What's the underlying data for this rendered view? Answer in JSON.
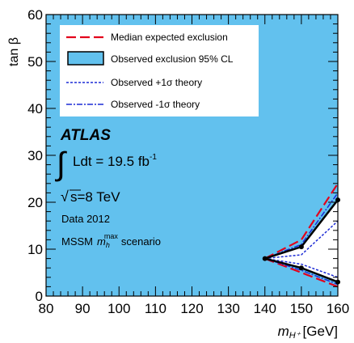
{
  "chart_data": {
    "type": "line",
    "xlabel": "m",
    "xlabel_sub": "H⁺",
    "xlabel_unit": "[GeV]",
    "ylabel": "tan β",
    "xlim": [
      80,
      160
    ],
    "ylim": [
      0,
      60
    ],
    "xticks": [
      "80",
      "90",
      "100",
      "110",
      "120",
      "130",
      "140",
      "150",
      "160"
    ],
    "yticks": [
      "0",
      "10",
      "20",
      "30",
      "40",
      "50",
      "60"
    ],
    "legend_position": "top-left",
    "series": [
      {
        "name": "Median expected exclusion",
        "style": "dashed",
        "color": "#e3001b",
        "upper": [
          {
            "x": 140,
            "y": 8
          },
          {
            "x": 150,
            "y": 12
          },
          {
            "x": 160,
            "y": 24
          }
        ],
        "lower": [
          {
            "x": 140,
            "y": 8
          },
          {
            "x": 150,
            "y": 5
          },
          {
            "x": 160,
            "y": 2
          }
        ]
      },
      {
        "name": "Observed exclusion 95% CL",
        "style": "filled",
        "color": "#62c1ee",
        "upper": [
          {
            "x": 140,
            "y": 8
          },
          {
            "x": 150,
            "y": 10.5
          },
          {
            "x": 160,
            "y": 20.5
          }
        ],
        "lower": [
          {
            "x": 140,
            "y": 8
          },
          {
            "x": 150,
            "y": 6
          },
          {
            "x": 160,
            "y": 3
          }
        ]
      },
      {
        "name": "Observed +1σ theory",
        "style": "dotted",
        "color": "#1c2bd6",
        "upper": [
          {
            "x": 140,
            "y": 8
          },
          {
            "x": 150,
            "y": 8.8
          },
          {
            "x": 160,
            "y": 16
          }
        ],
        "lower": [
          {
            "x": 140,
            "y": 8
          },
          {
            "x": 150,
            "y": 6.8
          },
          {
            "x": 160,
            "y": 4
          }
        ]
      },
      {
        "name": "Observed -1σ theory",
        "style": "dashdot",
        "color": "#1c2bd6",
        "upper": [
          {
            "x": 140,
            "y": 8
          },
          {
            "x": 150,
            "y": 11
          },
          {
            "x": 160,
            "y": 22
          }
        ],
        "lower": [
          {
            "x": 140,
            "y": 8
          },
          {
            "x": 150,
            "y": 5.5
          },
          {
            "x": 160,
            "y": 2.5
          }
        ]
      }
    ],
    "annotations": {
      "experiment": "ATLAS",
      "lumi_text": "Ldt = 19.5 fb",
      "lumi_exp": "-1",
      "energy": "s=8 TeV",
      "data_year": "Data 2012",
      "scenario_prefix": "MSSM",
      "scenario_m": "m",
      "scenario_sub": "h",
      "scenario_sup": "max",
      "scenario_suffix": "scenario"
    }
  }
}
